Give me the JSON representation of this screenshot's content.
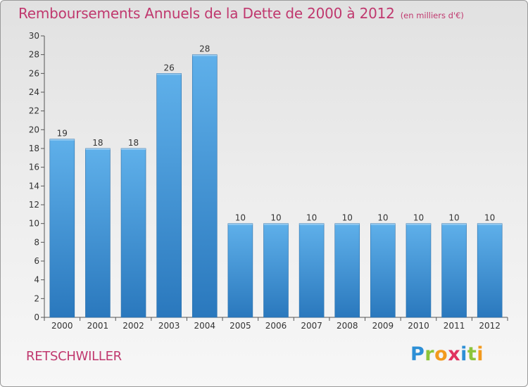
{
  "chart_data": {
    "type": "bar",
    "title": "Remboursements Annuels de la Dette de 2000 à 2012",
    "unit_note": "(en milliers d'€)",
    "categories": [
      "2000",
      "2001",
      "2002",
      "2003",
      "2004",
      "2005",
      "2006",
      "2007",
      "2008",
      "2009",
      "2010",
      "2011",
      "2012"
    ],
    "values": [
      19,
      18,
      18,
      26,
      28,
      10,
      10,
      10,
      10,
      10,
      10,
      10,
      10
    ],
    "ylim": [
      0,
      30
    ],
    "yticks": [
      0,
      2,
      4,
      6,
      8,
      10,
      12,
      14,
      16,
      18,
      20,
      22,
      24,
      26,
      28,
      30
    ],
    "grid": false,
    "data_labels": true,
    "colors": {
      "bar_top": "#5fb0ea",
      "bar_bottom": "#2a78bd",
      "text": "#c0386e"
    }
  },
  "footer": {
    "commune": "RETSCHWILLER",
    "logo_text": "Proxiti"
  }
}
